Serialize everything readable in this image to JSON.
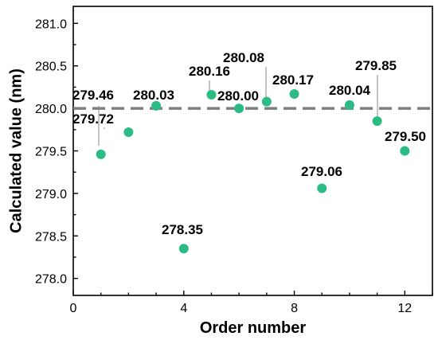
{
  "chart_data": {
    "type": "scatter",
    "xlabel": "Order number",
    "ylabel": "Calculated value (nm)",
    "xlim": [
      0,
      13
    ],
    "ylim": [
      277.8,
      281.2
    ],
    "xticks": [
      0,
      4,
      8,
      12
    ],
    "yticks": [
      278.0,
      278.5,
      279.0,
      279.5,
      280.0,
      280.5,
      281.0
    ],
    "reference_line": {
      "y": 280.0,
      "style": "dashed",
      "color": "#7f7f7f"
    },
    "marker_color": "#2dbb85",
    "grid": false,
    "points": [
      {
        "x": 1,
        "y": 279.46,
        "label": "279.46"
      },
      {
        "x": 2,
        "y": 279.72,
        "label": "279.72"
      },
      {
        "x": 3,
        "y": 280.03,
        "label": "280.03"
      },
      {
        "x": 4,
        "y": 278.35,
        "label": "278.35"
      },
      {
        "x": 5,
        "y": 280.16,
        "label": "280.16"
      },
      {
        "x": 6,
        "y": 280.0,
        "label": "280.00"
      },
      {
        "x": 7,
        "y": 280.08,
        "label": "280.08"
      },
      {
        "x": 8,
        "y": 280.17,
        "label": "280.17"
      },
      {
        "x": 9,
        "y": 279.06,
        "label": "279.06"
      },
      {
        "x": 10,
        "y": 280.04,
        "label": "280.04"
      },
      {
        "x": 11,
        "y": 279.85,
        "label": "279.85"
      },
      {
        "x": 12,
        "y": 279.5,
        "label": "279.50"
      }
    ]
  }
}
